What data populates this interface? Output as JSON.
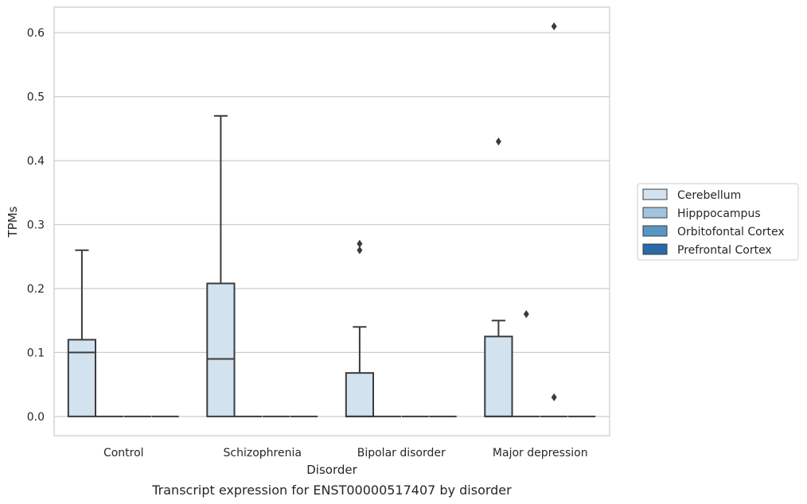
{
  "chart_data": {
    "type": "box",
    "title": "",
    "caption": "Transcript expression for ENST00000517407 by disorder",
    "xlabel": "Disorder",
    "ylabel": "TPMs",
    "ylim": [
      -0.03,
      0.64
    ],
    "yticks": [
      0.0,
      0.1,
      0.2,
      0.3,
      0.4,
      0.5,
      0.6
    ],
    "ytick_labels": [
      "0.0",
      "0.1",
      "0.2",
      "0.3",
      "0.4",
      "0.5",
      "0.6"
    ],
    "grid": "horizontal",
    "legend_position": "right",
    "categories": [
      "Control",
      "Schizophrenia",
      "Bipolar disorder",
      "Major depression"
    ],
    "series": [
      {
        "name": "Cerebellum",
        "color": "#d3e2ef",
        "boxes": [
          {
            "whislo": 0.0,
            "q1": 0.0,
            "med": 0.1,
            "q3": 0.12,
            "whishi": 0.26,
            "fliers": []
          },
          {
            "whislo": 0.0,
            "q1": 0.0,
            "med": 0.09,
            "q3": 0.208,
            "whishi": 0.47,
            "fliers": []
          },
          {
            "whislo": 0.0,
            "q1": 0.0,
            "med": 0.0,
            "q3": 0.068,
            "whishi": 0.14,
            "fliers": [
              0.26,
              0.27
            ]
          },
          {
            "whislo": 0.0,
            "q1": 0.0,
            "med": 0.0,
            "q3": 0.125,
            "whishi": 0.15,
            "fliers": [
              0.43
            ]
          }
        ]
      },
      {
        "name": "Hipppocampus",
        "color": "#a0c4dc",
        "boxes": [
          {
            "whislo": 0.0,
            "q1": 0.0,
            "med": 0.0,
            "q3": 0.0,
            "whishi": 0.0,
            "fliers": []
          },
          {
            "whislo": 0.0,
            "q1": 0.0,
            "med": 0.0,
            "q3": 0.0,
            "whishi": 0.0,
            "fliers": []
          },
          {
            "whislo": 0.0,
            "q1": 0.0,
            "med": 0.0,
            "q3": 0.0,
            "whishi": 0.0,
            "fliers": []
          },
          {
            "whislo": 0.0,
            "q1": 0.0,
            "med": 0.0,
            "q3": 0.0,
            "whishi": 0.0,
            "fliers": [
              0.16
            ]
          }
        ]
      },
      {
        "name": "Orbitofontal Cortex",
        "color": "#5a96c4",
        "boxes": [
          {
            "whislo": 0.0,
            "q1": 0.0,
            "med": 0.0,
            "q3": 0.0,
            "whishi": 0.0,
            "fliers": []
          },
          {
            "whislo": 0.0,
            "q1": 0.0,
            "med": 0.0,
            "q3": 0.0,
            "whishi": 0.0,
            "fliers": []
          },
          {
            "whislo": 0.0,
            "q1": 0.0,
            "med": 0.0,
            "q3": 0.0,
            "whishi": 0.0,
            "fliers": []
          },
          {
            "whislo": 0.0,
            "q1": 0.0,
            "med": 0.0,
            "q3": 0.0,
            "whishi": 0.0,
            "fliers": [
              0.61,
              0.03
            ]
          }
        ]
      },
      {
        "name": "Prefrontal Cortex",
        "color": "#2a6aa8",
        "boxes": [
          {
            "whislo": 0.0,
            "q1": 0.0,
            "med": 0.0,
            "q3": 0.0,
            "whishi": 0.0,
            "fliers": []
          },
          {
            "whislo": 0.0,
            "q1": 0.0,
            "med": 0.0,
            "q3": 0.0,
            "whishi": 0.0,
            "fliers": []
          },
          {
            "whislo": 0.0,
            "q1": 0.0,
            "med": 0.0,
            "q3": 0.0,
            "whishi": 0.0,
            "fliers": []
          },
          {
            "whislo": 0.0,
            "q1": 0.0,
            "med": 0.0,
            "q3": 0.0,
            "whishi": 0.0,
            "fliers": []
          }
        ]
      }
    ]
  }
}
